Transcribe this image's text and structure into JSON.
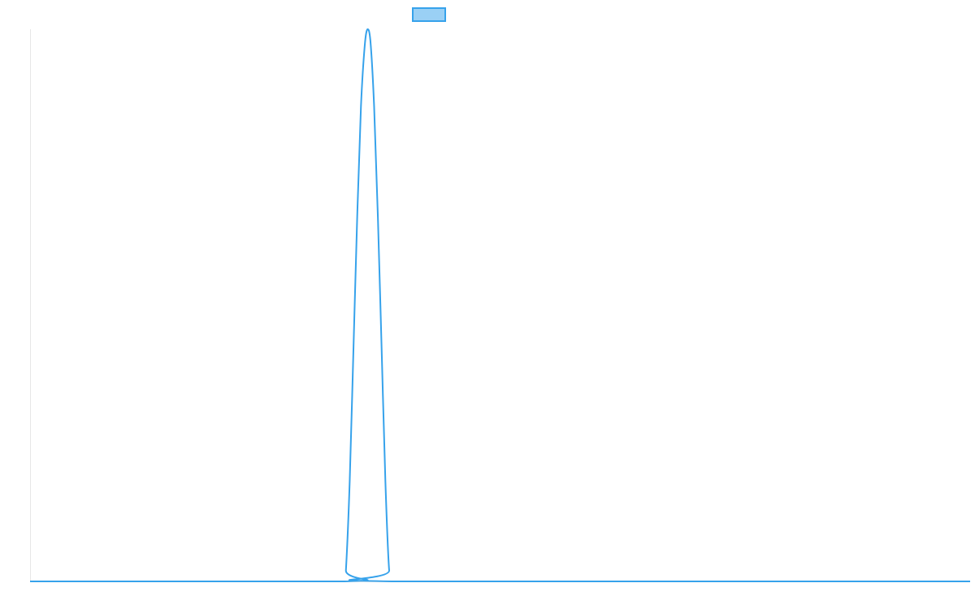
{
  "chart_data": {
    "type": "line",
    "title": "",
    "xlabel": "",
    "ylabel": "",
    "xlim": [
      0,
      100
    ],
    "ylim": [
      0,
      1
    ],
    "grid": false,
    "legend": "top-center",
    "series": [
      {
        "color": "#36a2eb",
        "fill": "#9ad0f5",
        "x": [
          0,
          33.4,
          33.6,
          34.0,
          34.4,
          34.8,
          35.2,
          35.6,
          35.9,
          36.2,
          36.6,
          37.0,
          37.4,
          37.8,
          38.2,
          38.6,
          100
        ],
        "values": [
          0,
          0,
          0.02,
          0.18,
          0.42,
          0.66,
          0.86,
          0.97,
          1.0,
          0.98,
          0.86,
          0.66,
          0.42,
          0.18,
          0.02,
          0,
          0
        ]
      }
    ]
  }
}
